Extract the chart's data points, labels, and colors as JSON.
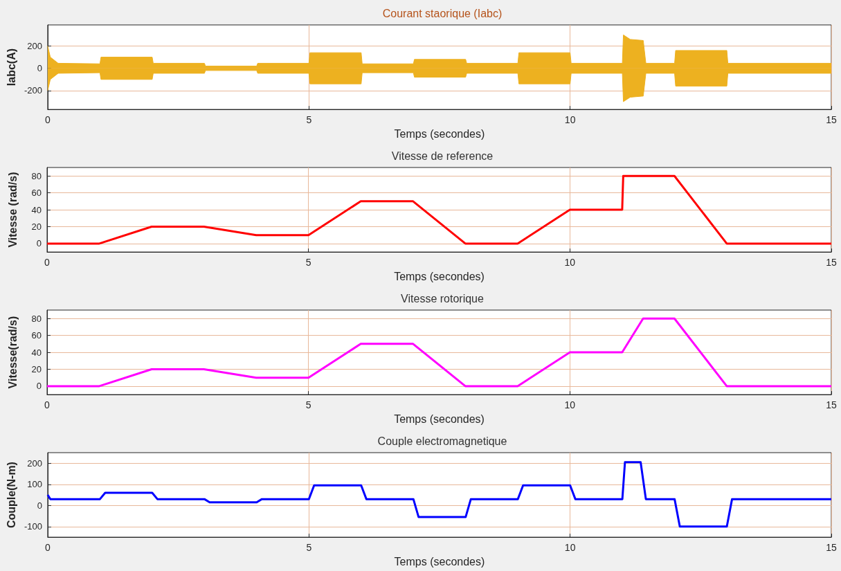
{
  "chart_data": [
    {
      "type": "area",
      "title": "Courant staorique (Iabc)",
      "xlabel": "Temps (secondes)",
      "ylabel": "Iabc(A)",
      "xlim": [
        0,
        15
      ],
      "xticks": [
        0,
        5,
        10,
        15
      ],
      "ylim": [
        -370,
        390
      ],
      "yticks": [
        -200,
        0,
        200
      ],
      "grid": true,
      "series": [
        {
          "color": "#edb120",
          "x": [
            0,
            0.05,
            0.2,
            1,
            1.02,
            2,
            2.02,
            3,
            3.02,
            4,
            4.02,
            5,
            5.02,
            6,
            6.02,
            7,
            7.02,
            8,
            8.02,
            9,
            9.02,
            10,
            10.02,
            11,
            11.02,
            11.15,
            11.4,
            11.45,
            12,
            12.02,
            13,
            13.02,
            15
          ],
          "values": [
            200,
            100,
            45,
            40,
            100,
            100,
            45,
            45,
            20,
            20,
            45,
            45,
            140,
            140,
            40,
            40,
            80,
            80,
            45,
            45,
            140,
            140,
            45,
            45,
            300,
            260,
            250,
            45,
            45,
            160,
            160,
            45,
            45
          ]
        },
        {
          "color": "#edb120",
          "x": [
            0,
            0.05,
            0.2,
            1,
            1.02,
            2,
            2.02,
            3,
            3.02,
            4,
            4.02,
            5,
            5.02,
            6,
            6.02,
            7,
            7.02,
            8,
            8.02,
            9,
            9.02,
            10,
            10.02,
            11,
            11.02,
            11.15,
            11.4,
            11.45,
            12,
            12.02,
            13,
            13.02,
            15
          ],
          "values": [
            -200,
            -100,
            -45,
            -40,
            -100,
            -100,
            -45,
            -45,
            -20,
            -20,
            -45,
            -45,
            -140,
            -140,
            -40,
            -40,
            -80,
            -80,
            -45,
            -45,
            -140,
            -140,
            -45,
            -45,
            -300,
            -260,
            -250,
            -45,
            -45,
            -160,
            -160,
            -45,
            -45
          ]
        }
      ]
    },
    {
      "type": "line",
      "title": "Vitesse de reference",
      "xlabel": "Temps (secondes)",
      "ylabel": "Vitesse (rad/s)",
      "xlim": [
        0,
        15
      ],
      "xticks": [
        0,
        5,
        10,
        15
      ],
      "ylim": [
        -10,
        90
      ],
      "yticks": [
        0,
        20,
        40,
        60,
        80
      ],
      "grid": true,
      "series": [
        {
          "color": "#ff0000",
          "x": [
            0,
            1,
            2,
            3,
            4,
            5,
            6,
            7,
            8,
            9,
            10,
            11,
            11.02,
            12,
            13,
            15
          ],
          "values": [
            0,
            0,
            20,
            20,
            10,
            10,
            50,
            50,
            0,
            0,
            40,
            40,
            80,
            80,
            0,
            0
          ]
        }
      ]
    },
    {
      "type": "line",
      "title": "Vitesse rotorique",
      "xlabel": "Temps (secondes)",
      "ylabel": "Vitesse(rad/s)",
      "xlim": [
        0,
        15
      ],
      "xticks": [
        0,
        5,
        10,
        15
      ],
      "ylim": [
        -10,
        90
      ],
      "yticks": [
        0,
        20,
        40,
        60,
        80
      ],
      "grid": true,
      "series": [
        {
          "color": "#ff00ff",
          "x": [
            0,
            1,
            2,
            3,
            4,
            5,
            6,
            7,
            8,
            9,
            10,
            11,
            11.4,
            12,
            13,
            15
          ],
          "values": [
            0,
            0,
            20,
            20,
            10,
            10,
            50,
            50,
            0,
            0,
            40,
            40,
            80,
            80,
            0,
            0
          ]
        }
      ]
    },
    {
      "type": "line",
      "title": "Couple electromagnetique",
      "xlabel": "Temps (secondes)",
      "ylabel": "Couple(N-m)",
      "xlim": [
        0,
        15
      ],
      "xticks": [
        0,
        5,
        10,
        15
      ],
      "ylim": [
        -150,
        250
      ],
      "yticks": [
        -100,
        0,
        100,
        200
      ],
      "grid": true,
      "series": [
        {
          "color": "#0000ff",
          "x": [
            0,
            0.05,
            1,
            1.1,
            2,
            2.1,
            3,
            3.1,
            4,
            4.1,
            5,
            5.1,
            6,
            6.1,
            7,
            7.1,
            8,
            8.1,
            9,
            9.1,
            10,
            10.1,
            11,
            11.05,
            11.35,
            11.45,
            12,
            12.1,
            13,
            13.1,
            15
          ],
          "values": [
            50,
            30,
            30,
            60,
            60,
            30,
            30,
            15,
            15,
            30,
            30,
            95,
            95,
            30,
            30,
            -55,
            -55,
            30,
            30,
            95,
            95,
            30,
            30,
            205,
            205,
            30,
            30,
            -100,
            -100,
            30,
            30
          ]
        }
      ]
    }
  ]
}
